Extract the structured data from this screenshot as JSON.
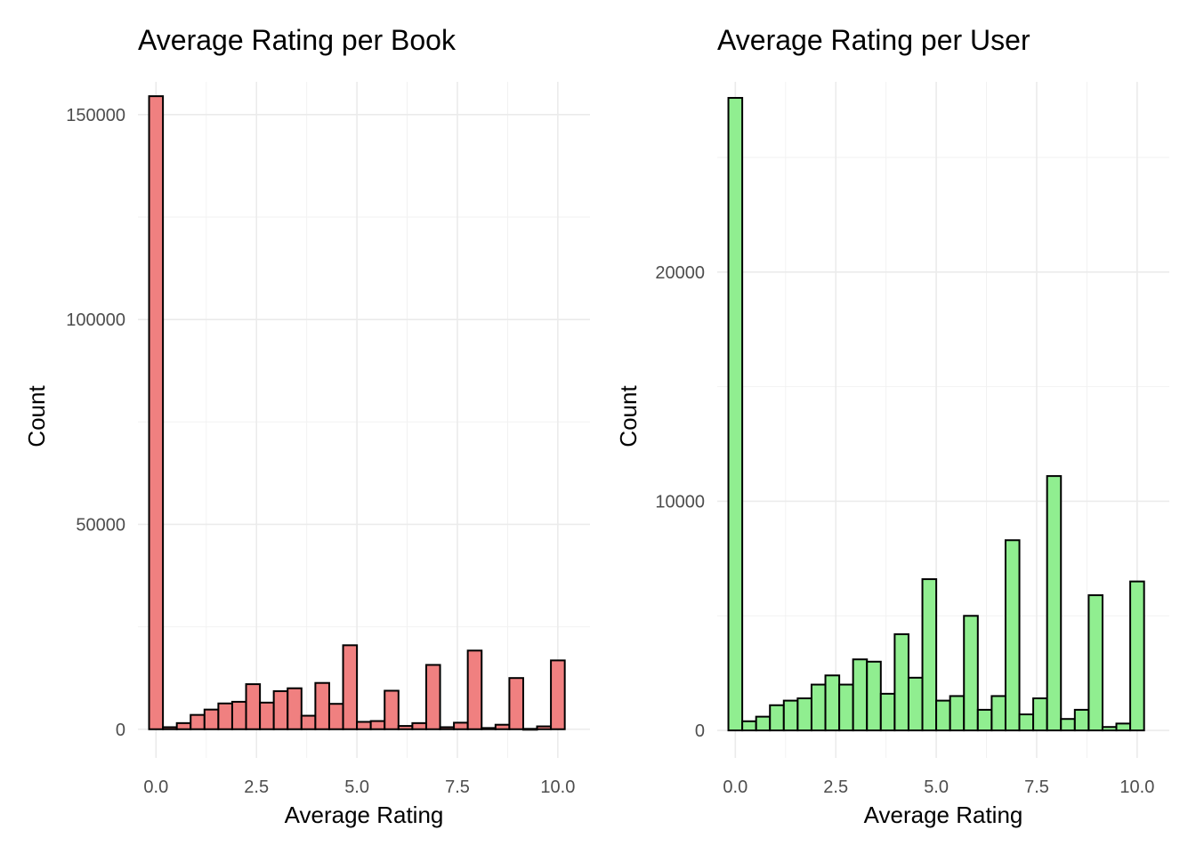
{
  "chart_data": [
    {
      "type": "bar",
      "histogram": true,
      "title": "Average Rating per Book",
      "xlabel": "Average Rating",
      "ylabel": "Count",
      "fill_color": "#f08080",
      "outline_color": "#000000",
      "grid": true,
      "xlim": [
        -0.45,
        10.8
      ],
      "ylim": [
        -7000,
        158000
      ],
      "x_ticks": [
        0,
        2.5,
        5,
        7.5,
        10
      ],
      "x_tick_labels": [
        "0.0",
        "2.5",
        "5.0",
        "7.5",
        "10.0"
      ],
      "y_ticks": [
        0,
        50000,
        100000,
        150000
      ],
      "y_tick_labels": [
        "0",
        "50000",
        "100000",
        "150000"
      ],
      "bin_width": 0.345,
      "bin_centers": [
        0,
        0.345,
        0.69,
        1.034,
        1.379,
        1.724,
        2.069,
        2.414,
        2.759,
        3.103,
        3.448,
        3.793,
        4.138,
        4.483,
        4.828,
        5.172,
        5.517,
        5.862,
        6.207,
        6.552,
        6.897,
        7.241,
        7.586,
        7.931,
        8.276,
        8.621,
        8.966,
        9.31,
        9.655,
        10
      ],
      "values": [
        154500,
        500,
        1500,
        3500,
        4800,
        6300,
        6700,
        11000,
        6500,
        9300,
        10000,
        3300,
        11300,
        6200,
        20500,
        1800,
        2000,
        9400,
        800,
        1500,
        15700,
        500,
        1600,
        19200,
        300,
        1100,
        12500,
        100,
        700,
        16800
      ]
    },
    {
      "type": "bar",
      "histogram": true,
      "title": "Average Rating per User",
      "xlabel": "Average Rating",
      "ylabel": "Count",
      "fill_color": "#90ee90",
      "outline_color": "#000000",
      "grid": true,
      "xlim": [
        -0.45,
        10.8
      ],
      "ylim": [
        -1200,
        28300
      ],
      "x_ticks": [
        0,
        2.5,
        5,
        7.5,
        10
      ],
      "x_tick_labels": [
        "0.0",
        "2.5",
        "5.0",
        "7.5",
        "10.0"
      ],
      "y_ticks": [
        0,
        10000,
        20000
      ],
      "y_tick_labels": [
        "0",
        "10000",
        "20000"
      ],
      "bin_width": 0.345,
      "bin_centers": [
        0,
        0.345,
        0.69,
        1.034,
        1.379,
        1.724,
        2.069,
        2.414,
        2.759,
        3.103,
        3.448,
        3.793,
        4.138,
        4.483,
        4.828,
        5.172,
        5.517,
        5.862,
        6.207,
        6.552,
        6.897,
        7.241,
        7.586,
        7.931,
        8.276,
        8.621,
        8.966,
        9.31,
        9.655,
        10
      ],
      "values": [
        27600,
        400,
        600,
        1100,
        1300,
        1400,
        2000,
        2400,
        2000,
        3100,
        3000,
        1600,
        4200,
        2300,
        6600,
        1300,
        1500,
        5000,
        900,
        1500,
        8300,
        700,
        1400,
        11100,
        500,
        900,
        5900,
        150,
        300,
        6500
      ]
    }
  ]
}
